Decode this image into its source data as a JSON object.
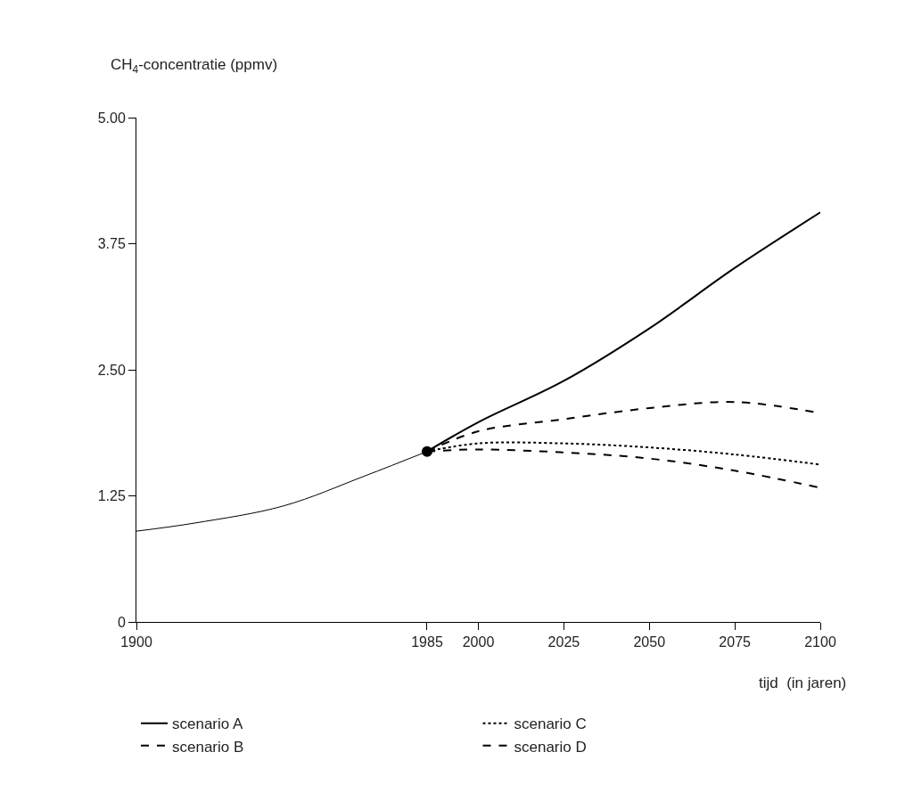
{
  "chart_data": {
    "type": "line",
    "ylabel": "CH$_{4}$-concentratie (ppmv)",
    "xlabel": "tijd  (in jaren)",
    "xlim": [
      1900,
      2100
    ],
    "xticks": [
      1900,
      1985,
      2000,
      2025,
      2050,
      2075,
      2100
    ],
    "ylim": [
      0,
      5
    ],
    "yticks": [
      {
        "value": 0,
        "label": "0"
      },
      {
        "value": 1.25,
        "label": "1.25"
      },
      {
        "value": 2.5,
        "label": "2.50"
      },
      {
        "value": 3.75,
        "label": "3.75"
      },
      {
        "value": 5,
        "label": "5.00"
      }
    ],
    "legend": "bottom",
    "series": [
      {
        "color": "#000000",
        "x": [
          1900,
          1917,
          1943,
          1967,
          1985
        ],
        "values": [
          0.9,
          0.98,
          1.15,
          1.45,
          1.69
        ],
        "line_style": "solid"
      },
      {
        "type": "scatter",
        "color": "#000000",
        "x": [
          1985
        ],
        "values": [
          1.69
        ],
        "marker": "circle"
      },
      {
        "name": "scenario A",
        "color": "#000000",
        "x": [
          1985,
          2000,
          2025,
          2050,
          2075,
          2100
        ],
        "values": [
          1.69,
          1.98,
          2.39,
          2.91,
          3.51,
          4.06
        ],
        "line_style": "solid"
      },
      {
        "name": "scenario B",
        "color": "#000000",
        "x": [
          1985,
          2000,
          2025,
          2050,
          2075,
          2100
        ],
        "values": [
          1.69,
          1.89,
          2.01,
          2.12,
          2.18,
          2.07
        ],
        "line_style": "dashed"
      },
      {
        "name": "scenario C",
        "color": "#000000",
        "x": [
          1985,
          2000,
          2025,
          2050,
          2075,
          2100
        ],
        "values": [
          1.69,
          1.77,
          1.77,
          1.73,
          1.66,
          1.56
        ],
        "line_style": "dotted"
      },
      {
        "name": "scenario D",
        "color": "#000000",
        "x": [
          1985,
          2000,
          2025,
          2050,
          2075,
          2100
        ],
        "values": [
          1.69,
          1.71,
          1.68,
          1.62,
          1.5,
          1.33
        ],
        "line_style": "dashed"
      }
    ]
  }
}
